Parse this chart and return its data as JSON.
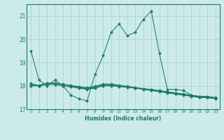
{
  "xlabel": "Humidex (Indice chaleur)",
  "background_color": "#cceaea",
  "grid_color": "#aacece",
  "line_color": "#1a7a6e",
  "xlim": [
    -0.5,
    23.5
  ],
  "ylim": [
    17.0,
    21.5
  ],
  "yticks": [
    17,
    18,
    19,
    20,
    21
  ],
  "xticks": [
    0,
    1,
    2,
    3,
    4,
    5,
    6,
    7,
    8,
    9,
    10,
    11,
    12,
    13,
    14,
    15,
    16,
    17,
    18,
    19,
    20,
    21,
    22,
    23
  ],
  "series": [
    [
      19.5,
      18.25,
      18.0,
      18.25,
      18.0,
      17.6,
      17.45,
      17.35,
      18.5,
      19.3,
      20.3,
      20.65,
      20.15,
      20.3,
      20.85,
      21.2,
      19.4,
      17.85,
      17.85,
      17.8,
      17.6,
      17.55,
      17.55,
      17.5
    ],
    [
      18.0,
      18.0,
      18.05,
      18.05,
      18.0,
      17.95,
      17.9,
      17.85,
      17.9,
      18.0,
      18.0,
      17.97,
      17.94,
      17.91,
      17.88,
      17.85,
      17.8,
      17.75,
      17.7,
      17.65,
      17.6,
      17.55,
      17.5,
      17.45
    ],
    [
      18.05,
      18.0,
      18.1,
      18.1,
      18.05,
      18.0,
      17.92,
      17.87,
      17.93,
      18.03,
      18.03,
      17.99,
      17.95,
      17.91,
      17.87,
      17.83,
      17.78,
      17.73,
      17.68,
      17.63,
      17.58,
      17.53,
      17.5,
      17.47
    ],
    [
      18.05,
      18.0,
      18.1,
      18.1,
      18.05,
      18.0,
      17.95,
      17.9,
      17.95,
      18.05,
      18.05,
      18.0,
      17.95,
      17.9,
      17.85,
      17.8,
      17.75,
      17.7,
      17.65,
      17.6,
      17.55,
      17.5,
      17.5,
      17.45
    ],
    [
      18.1,
      18.02,
      18.12,
      18.12,
      18.07,
      18.02,
      17.97,
      17.92,
      17.98,
      18.08,
      18.08,
      18.03,
      17.98,
      17.93,
      17.88,
      17.82,
      17.77,
      17.72,
      17.67,
      17.62,
      17.57,
      17.52,
      17.52,
      17.47
    ]
  ]
}
